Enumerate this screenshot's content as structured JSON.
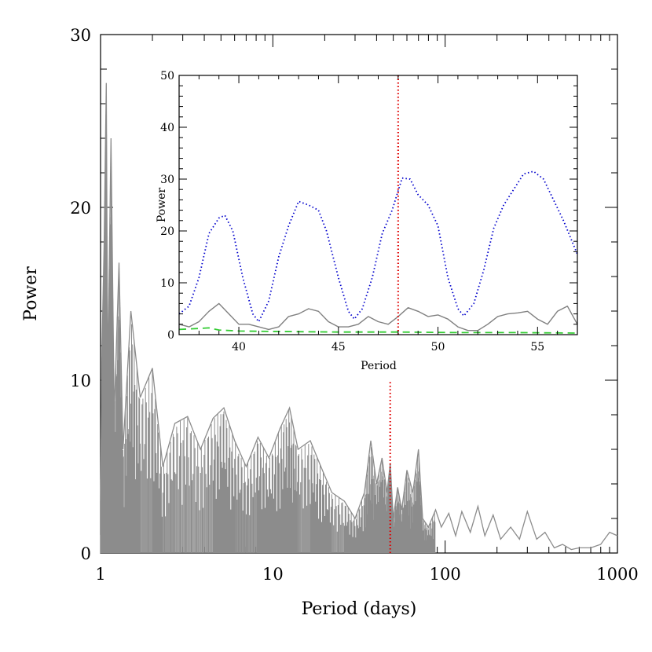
{
  "chart_data": [
    {
      "type": "line",
      "xlabel": "Period (days)",
      "ylabel": "Power",
      "xscale": "log",
      "xlim": [
        1,
        1000
      ],
      "ylim": [
        0,
        30
      ],
      "x_ticks": [
        1,
        10,
        100,
        1000
      ],
      "x_tick_labels": [
        "1",
        "10",
        "100",
        "1000"
      ],
      "y_ticks": [
        0,
        10,
        20,
        30
      ],
      "y_tick_labels": [
        "0",
        "10",
        "20",
        "30"
      ],
      "grid": false,
      "series": [
        {
          "color": "#8c8c8c",
          "style": "solid",
          "x": [
            1.0,
            1.02,
            1.05,
            1.08,
            1.1,
            1.15,
            1.2,
            1.28,
            1.35,
            1.5,
            1.7,
            2.0,
            2.3,
            2.7,
            3.2,
            3.8,
            4.5,
            5.2,
            6.0,
            7.0,
            8.2,
            9.5,
            11.0,
            12.5,
            14.0,
            16.5,
            19.0,
            22.0,
            26.0,
            30.0,
            34.0,
            37.0,
            40.0,
            43.0,
            46.0,
            48.0,
            50.0,
            53.0,
            56.0,
            60.0,
            65.0,
            70.0,
            74.0,
            80.0,
            88.0,
            95.0,
            105.0,
            115.0,
            125.0,
            140.0,
            155.0,
            170.0,
            190.0,
            210.0,
            240.0,
            270.0,
            300.0,
            340.0,
            380.0,
            430.0,
            480.0,
            540.0,
            600.0,
            700.0,
            800.0,
            900.0,
            1000.0
          ],
          "y": [
            3.0,
            12.0,
            18.0,
            27.2,
            10.0,
            24.0,
            8.0,
            16.8,
            6.0,
            14.0,
            9.0,
            10.7,
            5.0,
            7.5,
            7.9,
            6.0,
            7.8,
            8.4,
            6.5,
            5.0,
            6.7,
            5.5,
            7.2,
            8.4,
            6.0,
            6.5,
            5.0,
            3.5,
            3.0,
            2.0,
            3.5,
            6.5,
            4.0,
            5.5,
            3.5,
            5.2,
            2.0,
            3.8,
            2.5,
            4.8,
            3.5,
            6.0,
            2.0,
            1.5,
            2.5,
            1.5,
            2.3,
            1.0,
            2.4,
            1.2,
            2.7,
            1.0,
            2.2,
            0.8,
            1.5,
            0.8,
            2.4,
            0.8,
            1.2,
            0.3,
            0.5,
            0.2,
            0.3,
            0.3,
            0.5,
            1.2,
            1.0
          ]
        }
      ],
      "annotations": [
        {
          "type": "vline",
          "x": 48,
          "y_top": 10,
          "color": "#e00000",
          "style": "dotted"
        }
      ]
    },
    {
      "type": "line",
      "inset": true,
      "xlabel": "Period",
      "ylabel": "Power",
      "xlim": [
        37,
        57
      ],
      "ylim": [
        0,
        50
      ],
      "x_ticks": [
        40,
        45,
        50,
        55
      ],
      "x_tick_labels": [
        "40",
        "45",
        "50",
        "55"
      ],
      "y_ticks": [
        0,
        10,
        20,
        30,
        40,
        50
      ],
      "y_tick_labels": [
        "0",
        "10",
        "20",
        "30",
        "40",
        "50"
      ],
      "grid": false,
      "series": [
        {
          "color": "#0000cc",
          "style": "dotted",
          "x": [
            37.0,
            37.5,
            38.0,
            38.5,
            39.0,
            39.3,
            39.7,
            40.2,
            40.7,
            41.0,
            41.5,
            42.0,
            42.5,
            43.0,
            43.5,
            44.0,
            44.4,
            45.0,
            45.5,
            45.8,
            46.2,
            46.7,
            47.2,
            47.7,
            48.2,
            48.6,
            49.0,
            49.5,
            50.0,
            50.5,
            51.0,
            51.3,
            51.8,
            52.3,
            52.8,
            53.3,
            53.8,
            54.3,
            54.8,
            55.3,
            55.8,
            56.3,
            57.0
          ],
          "y": [
            4.0,
            5.5,
            11.0,
            19.5,
            22.5,
            23.0,
            20.0,
            11.0,
            4.0,
            2.5,
            6.5,
            15.0,
            21.0,
            25.7,
            25.0,
            24.0,
            20.0,
            11.0,
            4.5,
            3.0,
            5.0,
            11.0,
            19.5,
            24.0,
            30.2,
            30.0,
            27.0,
            25.0,
            21.0,
            11.0,
            5.0,
            3.6,
            6.0,
            12.5,
            20.5,
            25.0,
            28.0,
            31.0,
            31.5,
            30.0,
            26.0,
            22.0,
            15.5
          ]
        },
        {
          "color": "#808080",
          "style": "solid",
          "x": [
            37.0,
            37.5,
            38.0,
            38.5,
            39.0,
            39.5,
            40.0,
            40.5,
            41.0,
            41.5,
            42.0,
            42.5,
            43.0,
            43.5,
            44.0,
            44.5,
            45.0,
            45.5,
            46.0,
            46.5,
            47.0,
            47.5,
            48.0,
            48.5,
            49.0,
            49.5,
            50.0,
            50.5,
            51.0,
            51.5,
            52.0,
            52.5,
            53.0,
            53.5,
            54.0,
            54.5,
            55.0,
            55.5,
            56.0,
            56.5,
            57.0
          ],
          "y": [
            2.0,
            1.5,
            2.5,
            4.5,
            6.0,
            4.0,
            2.0,
            2.0,
            1.5,
            1.0,
            1.5,
            3.5,
            4.0,
            5.0,
            4.5,
            2.5,
            1.5,
            1.5,
            2.0,
            3.5,
            2.5,
            2.0,
            3.5,
            5.2,
            4.5,
            3.5,
            3.8,
            3.0,
            1.5,
            0.8,
            0.8,
            2.0,
            3.5,
            4.0,
            4.2,
            4.5,
            3.0,
            2.0,
            4.5,
            5.5,
            2.0
          ]
        },
        {
          "color": "#33cc33",
          "style": "dashed",
          "x": [
            37.0,
            38.0,
            38.5,
            39.0,
            40.0,
            42.0,
            45.0,
            48.0,
            51.0,
            54.0,
            57.0
          ],
          "y": [
            1.0,
            1.2,
            1.3,
            0.9,
            0.7,
            0.6,
            0.5,
            0.5,
            0.4,
            0.4,
            0.3
          ]
        }
      ],
      "annotations": [
        {
          "type": "vline",
          "x": 48,
          "color": "#e00000",
          "style": "dotted"
        }
      ]
    }
  ]
}
